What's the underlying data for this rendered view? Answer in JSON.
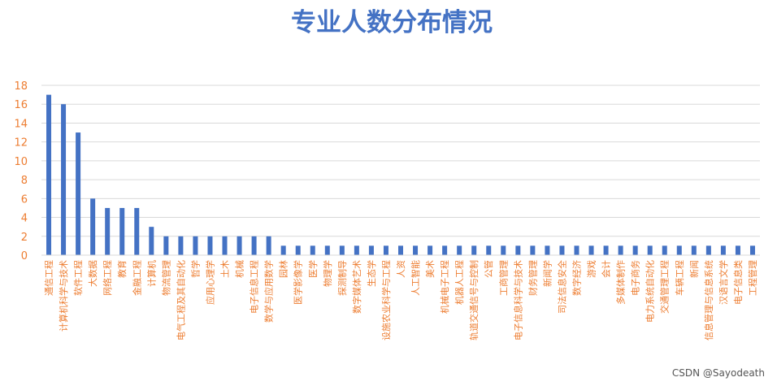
{
  "chart_data": {
    "type": "bar",
    "title": "专业人数分布情况",
    "xlabel": "",
    "ylabel": "",
    "ylim": [
      0,
      18
    ],
    "yticks": [
      0,
      2,
      4,
      6,
      8,
      10,
      12,
      14,
      16,
      18
    ],
    "grid": true,
    "legend": "none",
    "bar_color": "#4472C4",
    "label_color": "#ED7D31",
    "title_color": "#4472C4",
    "categories": [
      "通信工程",
      "计算机科学与技术",
      "软件工程",
      "大数据",
      "网络工程",
      "教育",
      "金融工程",
      "计算机",
      "物流管理",
      "电气工程及其自动化",
      "哲学",
      "应用心理学",
      "土木",
      "机械",
      "电子信息工程",
      "数学与应用数学",
      "园林",
      "医学影像学",
      "医学",
      "物理学",
      "探测制导",
      "数字媒体艺术",
      "生态学",
      "设施农业科学与工程",
      "人资",
      "人工智能",
      "美术",
      "机械电子工程",
      "机器人工程",
      "轨道交通信号与控制",
      "公管",
      "工商管理",
      "电子信息科学与技术",
      "财务管理",
      "新闻学",
      "司法信息安全",
      "数字经济",
      "游戏",
      "会计",
      "多媒体制作",
      "电子商务",
      "电力系统自动化",
      "交通管理工程",
      "车辆工程",
      "新闻",
      "信息管理与信息系统",
      "汉语言文学",
      "电子信息类",
      "工程管理"
    ],
    "values": [
      17,
      16,
      13,
      6,
      5,
      5,
      5,
      3,
      2,
      2,
      2,
      2,
      2,
      2,
      2,
      2,
      1,
      1,
      1,
      1,
      1,
      1,
      1,
      1,
      1,
      1,
      1,
      1,
      1,
      1,
      1,
      1,
      1,
      1,
      1,
      1,
      1,
      1,
      1,
      1,
      1,
      1,
      1,
      1,
      1,
      1,
      1,
      1,
      1
    ]
  },
  "watermark": "CSDN @Sayodeath"
}
